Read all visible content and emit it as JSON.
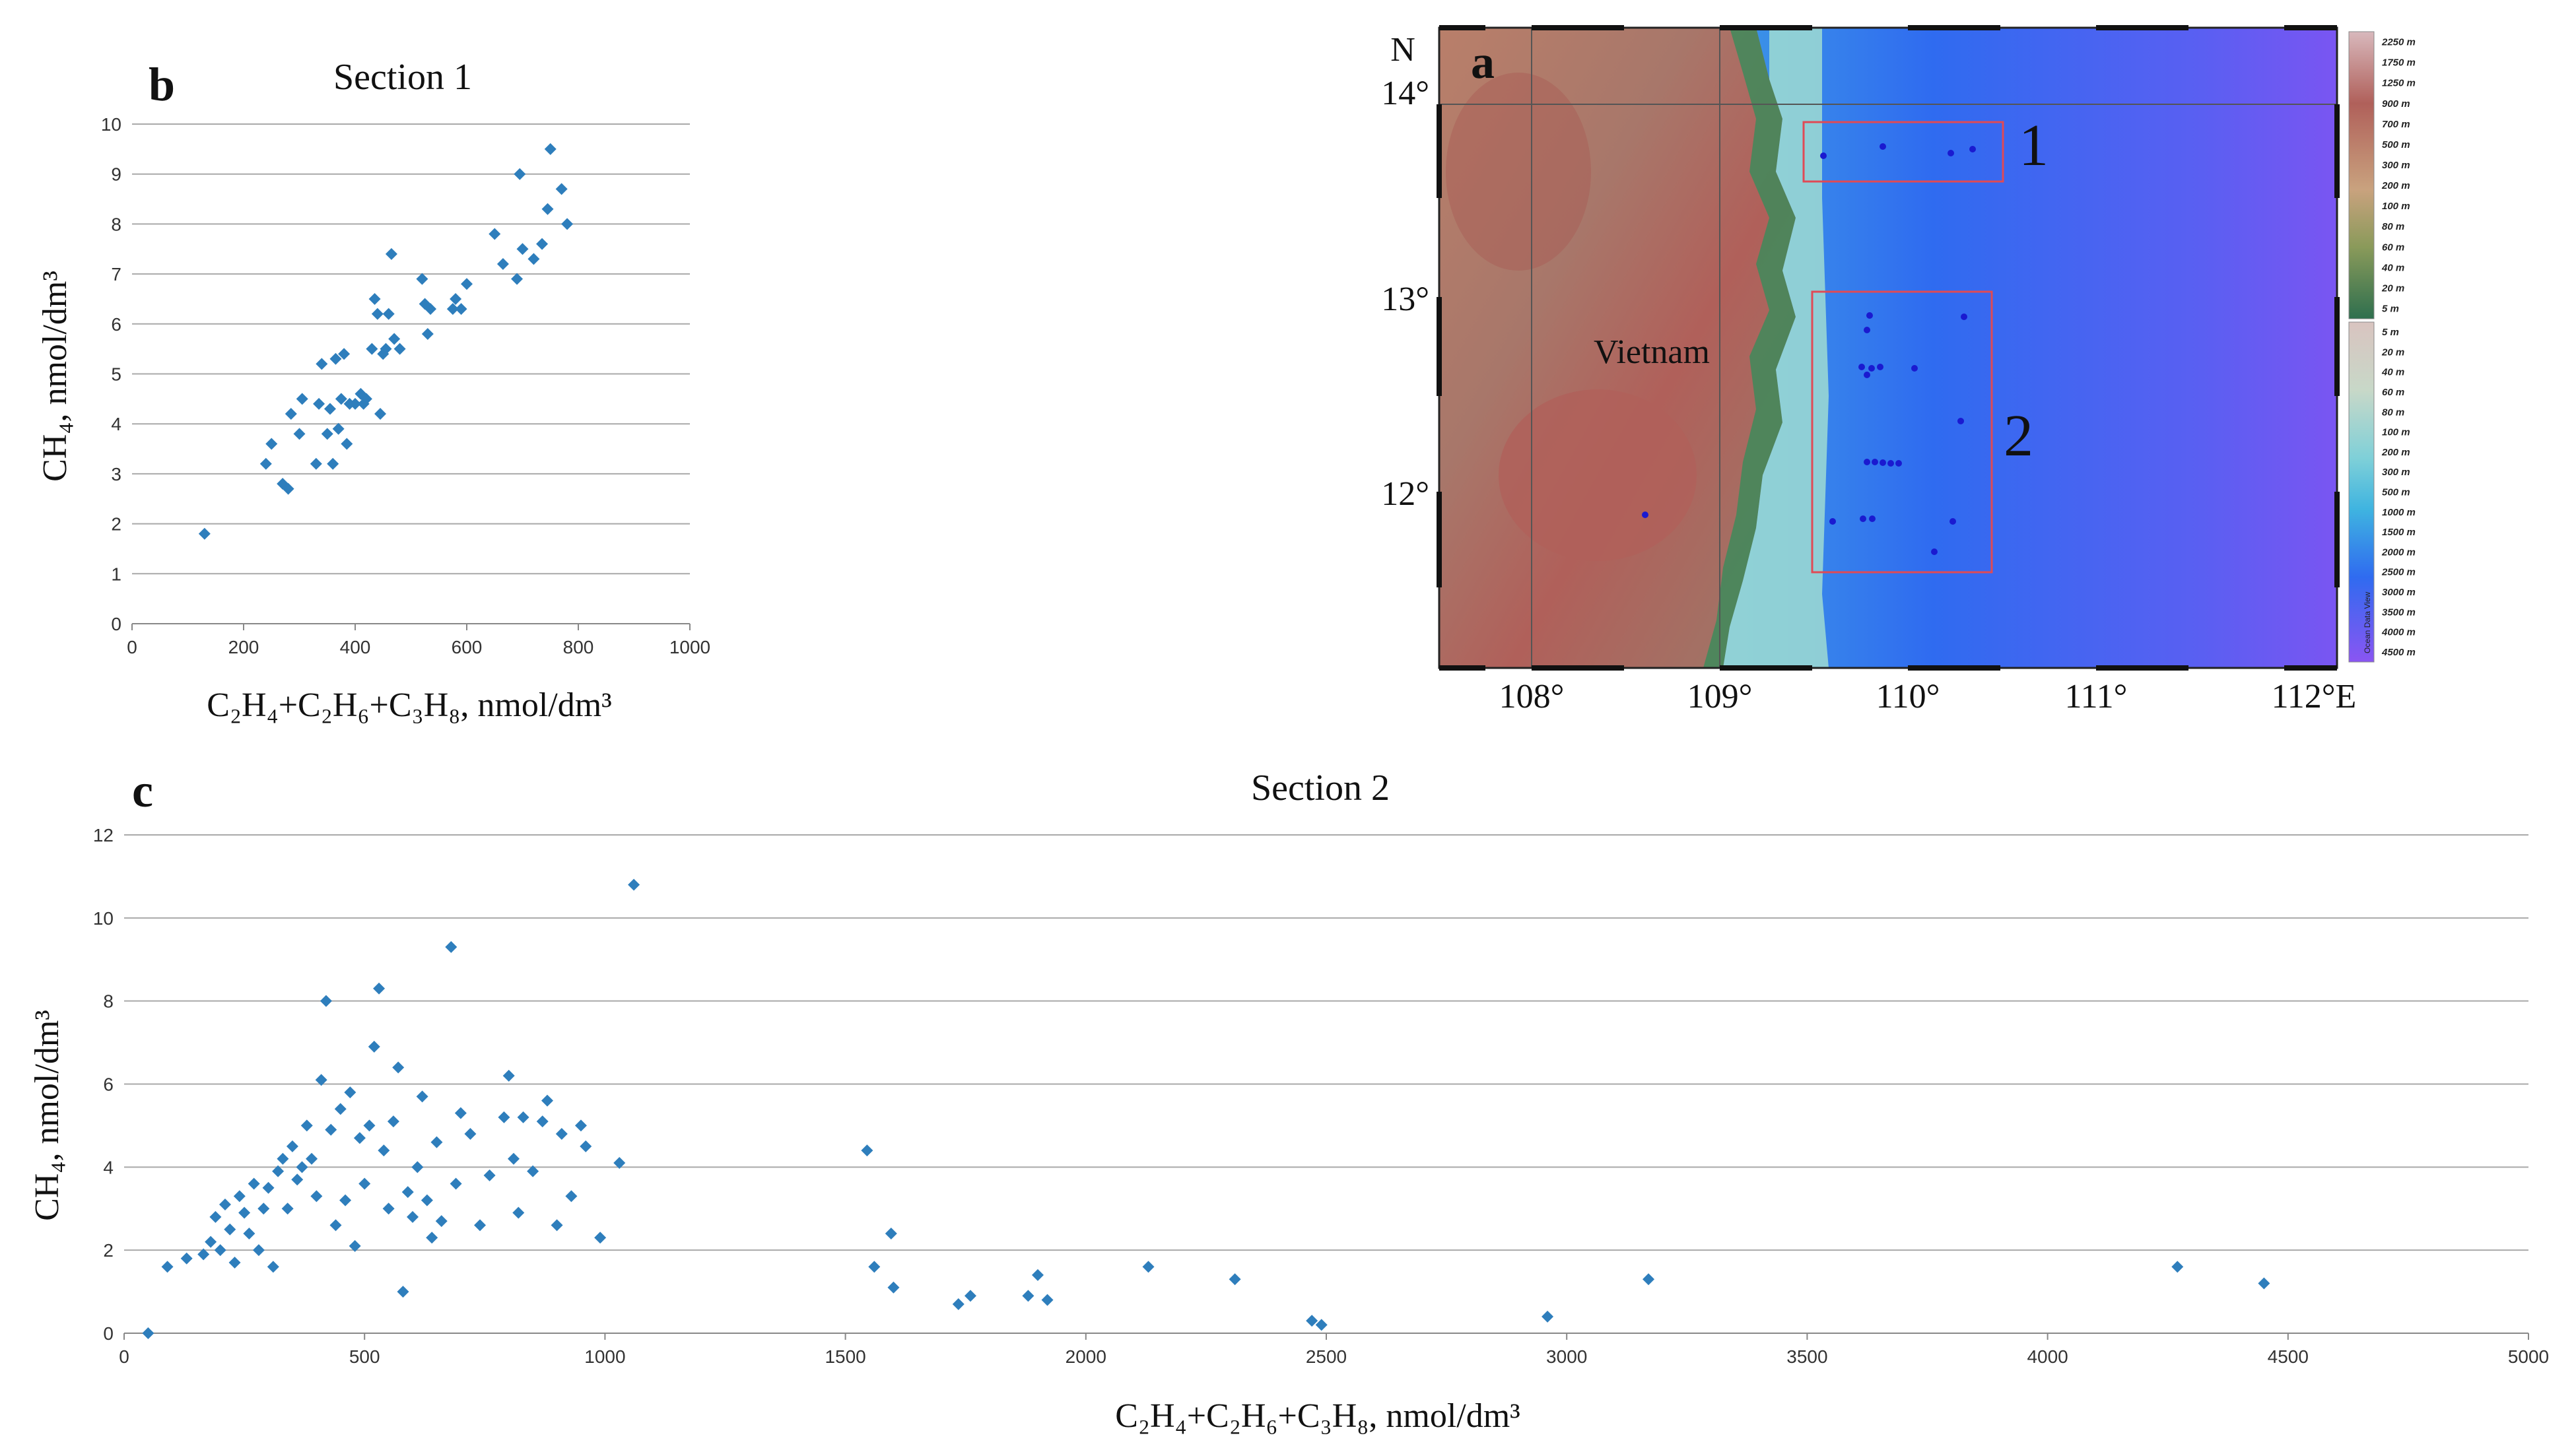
{
  "panel_b": {
    "letter": "b",
    "title": "Section 1",
    "ylabel": "CH₄, nmol/dm³",
    "xlabel": "C₂H₄+C₂H₆+C₃H₈, nmol/dm³"
  },
  "panel_c": {
    "letter": "c",
    "title": "Section 2",
    "ylabel": "CH₄, nmol/dm³",
    "xlabel": "C₂H₄+C₂H₆+C₃H₈, nmol/dm³"
  },
  "map": {
    "letter": "a",
    "north_label": "N",
    "country_label": "Vietnam",
    "box_labels": [
      "1",
      "2"
    ],
    "lat_labels": [
      "14°",
      "13°",
      "12°"
    ],
    "lon_labels": [
      "108°",
      "109°",
      "110°",
      "111°",
      "112°E"
    ],
    "colorbar_land": [
      "2250 m",
      "1750 m",
      "1250 m",
      "900 m",
      "700 m",
      "500 m",
      "300 m",
      "200 m",
      "100 m",
      "80 m",
      "60 m",
      "40 m",
      "20 m",
      "5 m"
    ],
    "colorbar_sea": [
      "5 m",
      "20 m",
      "40 m",
      "60 m",
      "80 m",
      "100 m",
      "200 m",
      "300 m",
      "500 m",
      "1000 m",
      "1500 m",
      "2000 m",
      "2500 m",
      "3000 m",
      "3500 m",
      "4000 m",
      "4500 m"
    ],
    "colorbar_credit": "Ocean Data View",
    "colors": {
      "land_high": "#b0605a",
      "land_low": "#3f8a5a",
      "shelf": "#8fd3cc",
      "deep": "#2f6bf0",
      "abyss": "#7a55f2",
      "box": "#e04a55",
      "station": "#1a1ad0"
    }
  },
  "chart_data": [
    {
      "type": "scatter",
      "title": "Section 1",
      "xlabel": "C₂H₄+C₂H₆+C₃H₈, nmol/dm³",
      "ylabel": "CH₄, nmol/dm³",
      "xlim": [
        0,
        1000
      ],
      "ylim": [
        0,
        10
      ],
      "xticks": [
        0,
        200,
        400,
        600,
        800,
        1000
      ],
      "yticks": [
        0,
        1,
        2,
        3,
        4,
        5,
        6,
        7,
        8,
        9,
        10
      ],
      "grid": true,
      "color": "#2e7ebc",
      "points": [
        [
          130,
          1.8
        ],
        [
          240,
          3.2
        ],
        [
          250,
          3.6
        ],
        [
          270,
          2.8
        ],
        [
          280,
          2.7
        ],
        [
          285,
          4.2
        ],
        [
          300,
          3.8
        ],
        [
          305,
          4.5
        ],
        [
          330,
          3.2
        ],
        [
          335,
          4.4
        ],
        [
          340,
          5.2
        ],
        [
          350,
          3.8
        ],
        [
          355,
          4.3
        ],
        [
          360,
          3.2
        ],
        [
          365,
          5.3
        ],
        [
          370,
          3.9
        ],
        [
          375,
          4.5
        ],
        [
          380,
          5.4
        ],
        [
          385,
          3.6
        ],
        [
          390,
          4.4
        ],
        [
          400,
          4.4
        ],
        [
          410,
          4.6
        ],
        [
          415,
          4.4
        ],
        [
          420,
          4.5
        ],
        [
          430,
          5.5
        ],
        [
          435,
          6.5
        ],
        [
          440,
          6.2
        ],
        [
          445,
          4.2
        ],
        [
          450,
          5.4
        ],
        [
          455,
          5.5
        ],
        [
          460,
          6.2
        ],
        [
          465,
          7.4
        ],
        [
          470,
          5.7
        ],
        [
          480,
          5.5
        ],
        [
          520,
          6.9
        ],
        [
          525,
          6.4
        ],
        [
          530,
          5.8
        ],
        [
          535,
          6.3
        ],
        [
          575,
          6.3
        ],
        [
          580,
          6.5
        ],
        [
          590,
          6.3
        ],
        [
          600,
          6.8
        ],
        [
          650,
          7.8
        ],
        [
          665,
          7.2
        ],
        [
          690,
          6.9
        ],
        [
          695,
          9.0
        ],
        [
          700,
          7.5
        ],
        [
          720,
          7.3
        ],
        [
          735,
          7.6
        ],
        [
          745,
          8.3
        ],
        [
          750,
          9.5
        ],
        [
          770,
          8.7
        ],
        [
          780,
          8.0
        ]
      ]
    },
    {
      "type": "scatter",
      "title": "Section 2",
      "xlabel": "C₂H₄+C₂H₆+C₃H₈, nmol/dm³",
      "ylabel": "CH₄, nmol/dm³",
      "xlim": [
        0,
        5000
      ],
      "ylim": [
        0,
        12
      ],
      "xticks": [
        0,
        500,
        1000,
        1500,
        2000,
        2500,
        3000,
        3500,
        4000,
        4500,
        5000
      ],
      "yticks": [
        0,
        2,
        4,
        6,
        8,
        10,
        12
      ],
      "grid": true,
      "color": "#2e7ebc",
      "points": [
        [
          50,
          0.0
        ],
        [
          90,
          1.6
        ],
        [
          130,
          1.8
        ],
        [
          165,
          1.9
        ],
        [
          180,
          2.2
        ],
        [
          190,
          2.8
        ],
        [
          200,
          2.0
        ],
        [
          210,
          3.1
        ],
        [
          220,
          2.5
        ],
        [
          230,
          1.7
        ],
        [
          240,
          3.3
        ],
        [
          250,
          2.9
        ],
        [
          260,
          2.4
        ],
        [
          270,
          3.6
        ],
        [
          280,
          2.0
        ],
        [
          290,
          3.0
        ],
        [
          300,
          3.5
        ],
        [
          310,
          1.6
        ],
        [
          320,
          3.9
        ],
        [
          330,
          4.2
        ],
        [
          340,
          3.0
        ],
        [
          350,
          4.5
        ],
        [
          360,
          3.7
        ],
        [
          370,
          4.0
        ],
        [
          380,
          5.0
        ],
        [
          390,
          4.2
        ],
        [
          400,
          3.3
        ],
        [
          410,
          6.1
        ],
        [
          420,
          8.0
        ],
        [
          430,
          4.9
        ],
        [
          440,
          2.6
        ],
        [
          450,
          5.4
        ],
        [
          460,
          3.2
        ],
        [
          470,
          5.8
        ],
        [
          480,
          2.1
        ],
        [
          490,
          4.7
        ],
        [
          500,
          3.6
        ],
        [
          510,
          5.0
        ],
        [
          520,
          6.9
        ],
        [
          530,
          8.3
        ],
        [
          540,
          4.4
        ],
        [
          550,
          3.0
        ],
        [
          560,
          5.1
        ],
        [
          570,
          6.4
        ],
        [
          580,
          1.0
        ],
        [
          590,
          3.4
        ],
        [
          600,
          2.8
        ],
        [
          610,
          4.0
        ],
        [
          620,
          5.7
        ],
        [
          630,
          3.2
        ],
        [
          640,
          2.3
        ],
        [
          650,
          4.6
        ],
        [
          660,
          2.7
        ],
        [
          680,
          9.3
        ],
        [
          690,
          3.6
        ],
        [
          700,
          5.3
        ],
        [
          720,
          4.8
        ],
        [
          740,
          2.6
        ],
        [
          760,
          3.8
        ],
        [
          790,
          5.2
        ],
        [
          800,
          6.2
        ],
        [
          810,
          4.2
        ],
        [
          820,
          2.9
        ],
        [
          830,
          5.2
        ],
        [
          850,
          3.9
        ],
        [
          870,
          5.1
        ],
        [
          880,
          5.6
        ],
        [
          900,
          2.6
        ],
        [
          910,
          4.8
        ],
        [
          930,
          3.3
        ],
        [
          950,
          5.0
        ],
        [
          960,
          4.5
        ],
        [
          990,
          2.3
        ],
        [
          1030,
          4.1
        ],
        [
          1060,
          10.8
        ],
        [
          1545,
          4.4
        ],
        [
          1560,
          1.6
        ],
        [
          1595,
          2.4
        ],
        [
          1600,
          1.1
        ],
        [
          1735,
          0.7
        ],
        [
          1760,
          0.9
        ],
        [
          1880,
          0.9
        ],
        [
          1900,
          1.4
        ],
        [
          1920,
          0.8
        ],
        [
          2130,
          1.6
        ],
        [
          2310,
          1.3
        ],
        [
          2470,
          0.3
        ],
        [
          2490,
          0.2
        ],
        [
          2960,
          0.4
        ],
        [
          3170,
          1.3
        ],
        [
          4270,
          1.6
        ],
        [
          4450,
          1.2
        ]
      ]
    }
  ]
}
